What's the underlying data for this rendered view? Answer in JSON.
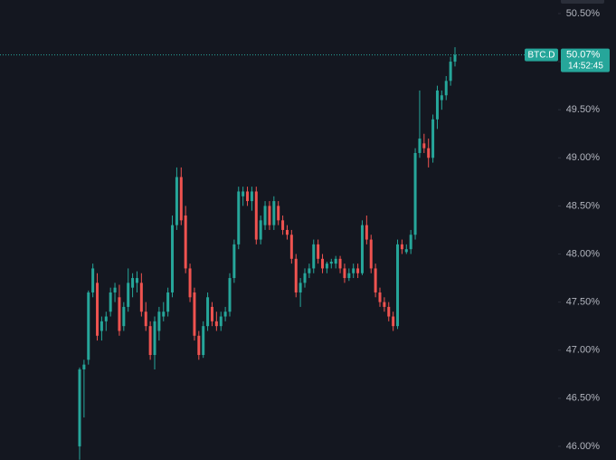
{
  "chart_data": {
    "type": "candlestick",
    "symbol": "BTC.D",
    "last_price": {
      "value": 50.07,
      "label": "50.07%"
    },
    "last_time": "14:52:45",
    "up_color": "#26a69a",
    "down_color": "#ef5350",
    "ylim": [
      45.858,
      50.641
    ],
    "yticks": [
      {
        "value": 46,
        "label": "46.00%"
      },
      {
        "value": 46.5,
        "label": "46.50%"
      },
      {
        "value": 47,
        "label": "47.00%"
      },
      {
        "value": 47.5,
        "label": "47.50%"
      },
      {
        "value": 48,
        "label": "48.00%"
      },
      {
        "value": 48.5,
        "label": "48.50%"
      },
      {
        "value": 49,
        "label": "49.00%"
      },
      {
        "value": 49.5,
        "label": "49.50%"
      },
      {
        "value": 50,
        "label": "50.00%"
      },
      {
        "value": 50.5,
        "label": "50.50%"
      }
    ],
    "ohlc": [
      [
        46.0,
        46.82,
        45.86,
        46.8
      ],
      [
        46.8,
        46.9,
        46.3,
        46.85
      ],
      [
        46.9,
        47.62,
        46.85,
        47.6
      ],
      [
        47.6,
        47.9,
        47.55,
        47.85
      ],
      [
        47.7,
        47.8,
        47.1,
        47.15
      ],
      [
        47.2,
        47.35,
        47.1,
        47.3
      ],
      [
        47.3,
        47.4,
        47.2,
        47.35
      ],
      [
        47.4,
        47.65,
        47.35,
        47.6
      ],
      [
        47.6,
        47.7,
        47.5,
        47.65
      ],
      [
        47.55,
        47.68,
        47.15,
        47.2
      ],
      [
        47.25,
        47.5,
        47.2,
        47.45
      ],
      [
        47.45,
        47.85,
        47.4,
        47.7
      ],
      [
        47.65,
        47.8,
        47.55,
        47.75
      ],
      [
        47.7,
        47.82,
        47.6,
        47.75
      ],
      [
        47.7,
        47.8,
        47.35,
        47.4
      ],
      [
        47.4,
        47.5,
        47.2,
        47.25
      ],
      [
        47.25,
        47.3,
        46.9,
        46.95
      ],
      [
        46.95,
        47.35,
        46.8,
        47.3
      ],
      [
        47.2,
        47.45,
        47.1,
        47.4
      ],
      [
        47.35,
        47.5,
        47.3,
        47.4
      ],
      [
        47.4,
        47.65,
        47.35,
        47.6
      ],
      [
        47.6,
        48.4,
        47.55,
        48.3
      ],
      [
        48.3,
        48.9,
        48.25,
        48.8
      ],
      [
        48.8,
        48.9,
        48.3,
        48.35
      ],
      [
        48.4,
        48.5,
        47.8,
        47.85
      ],
      [
        47.85,
        47.9,
        47.5,
        47.55
      ],
      [
        47.6,
        47.65,
        47.1,
        47.15
      ],
      [
        47.15,
        47.2,
        46.9,
        46.95
      ],
      [
        46.95,
        47.3,
        46.92,
        47.25
      ],
      [
        47.25,
        47.6,
        47.2,
        47.55
      ],
      [
        47.45,
        47.5,
        47.25,
        47.3
      ],
      [
        47.3,
        47.4,
        47.2,
        47.25
      ],
      [
        47.25,
        47.4,
        47.2,
        47.35
      ],
      [
        47.35,
        47.45,
        47.3,
        47.4
      ],
      [
        47.4,
        47.8,
        47.35,
        47.75
      ],
      [
        47.75,
        48.15,
        47.7,
        48.1
      ],
      [
        48.1,
        48.7,
        48.05,
        48.65
      ],
      [
        48.6,
        48.7,
        48.5,
        48.65
      ],
      [
        48.65,
        48.7,
        48.5,
        48.55
      ],
      [
        48.55,
        48.7,
        48.45,
        48.65
      ],
      [
        48.65,
        48.7,
        48.1,
        48.15
      ],
      [
        48.15,
        48.4,
        48.1,
        48.35
      ],
      [
        48.3,
        48.55,
        48.25,
        48.5
      ],
      [
        48.5,
        48.55,
        48.25,
        48.3
      ],
      [
        48.3,
        48.6,
        48.25,
        48.55
      ],
      [
        48.5,
        48.55,
        48.3,
        48.35
      ],
      [
        48.35,
        48.4,
        48.2,
        48.25
      ],
      [
        48.25,
        48.3,
        48.15,
        48.2
      ],
      [
        48.2,
        48.25,
        47.9,
        47.95
      ],
      [
        47.95,
        48.0,
        47.55,
        47.6
      ],
      [
        47.6,
        47.75,
        47.45,
        47.7
      ],
      [
        47.7,
        47.85,
        47.65,
        47.8
      ],
      [
        47.8,
        47.9,
        47.75,
        47.85
      ],
      [
        47.85,
        48.15,
        47.8,
        48.1
      ],
      [
        48.1,
        48.15,
        47.9,
        47.95
      ],
      [
        47.95,
        48.0,
        47.8,
        47.85
      ],
      [
        47.85,
        47.92,
        47.8,
        47.9
      ],
      [
        47.9,
        47.95,
        47.85,
        47.92
      ],
      [
        47.9,
        47.98,
        47.85,
        47.95
      ],
      [
        47.95,
        47.98,
        47.8,
        47.85
      ],
      [
        47.85,
        47.9,
        47.7,
        47.75
      ],
      [
        47.75,
        47.85,
        47.72,
        47.8
      ],
      [
        47.8,
        47.9,
        47.75,
        47.85
      ],
      [
        47.85,
        47.9,
        47.75,
        47.8
      ],
      [
        47.8,
        48.35,
        47.78,
        48.3
      ],
      [
        48.3,
        48.4,
        48.1,
        48.15
      ],
      [
        48.15,
        48.2,
        47.8,
        47.85
      ],
      [
        47.85,
        47.9,
        47.55,
        47.6
      ],
      [
        47.6,
        47.65,
        47.45,
        47.5
      ],
      [
        47.5,
        47.55,
        47.4,
        47.45
      ],
      [
        47.45,
        47.5,
        47.3,
        47.35
      ],
      [
        47.35,
        47.4,
        47.2,
        47.25
      ],
      [
        47.25,
        48.15,
        47.22,
        48.1
      ],
      [
        48.1,
        48.15,
        48.0,
        48.05
      ],
      [
        48.02,
        48.1,
        48.0,
        48.05
      ],
      [
        48.05,
        48.25,
        48.0,
        48.2
      ],
      [
        48.2,
        49.1,
        48.15,
        49.05
      ],
      [
        49.05,
        49.7,
        49.0,
        49.2
      ],
      [
        49.15,
        49.25,
        49.05,
        49.1
      ],
      [
        49.1,
        49.2,
        48.9,
        49.0
      ],
      [
        49.0,
        49.45,
        48.95,
        49.4
      ],
      [
        49.4,
        49.75,
        49.3,
        49.7
      ],
      [
        49.6,
        49.7,
        49.5,
        49.65
      ],
      [
        49.65,
        49.85,
        49.6,
        49.8
      ],
      [
        49.8,
        50.05,
        49.75,
        50.0
      ],
      [
        50.0,
        50.15,
        49.95,
        50.07
      ]
    ]
  }
}
